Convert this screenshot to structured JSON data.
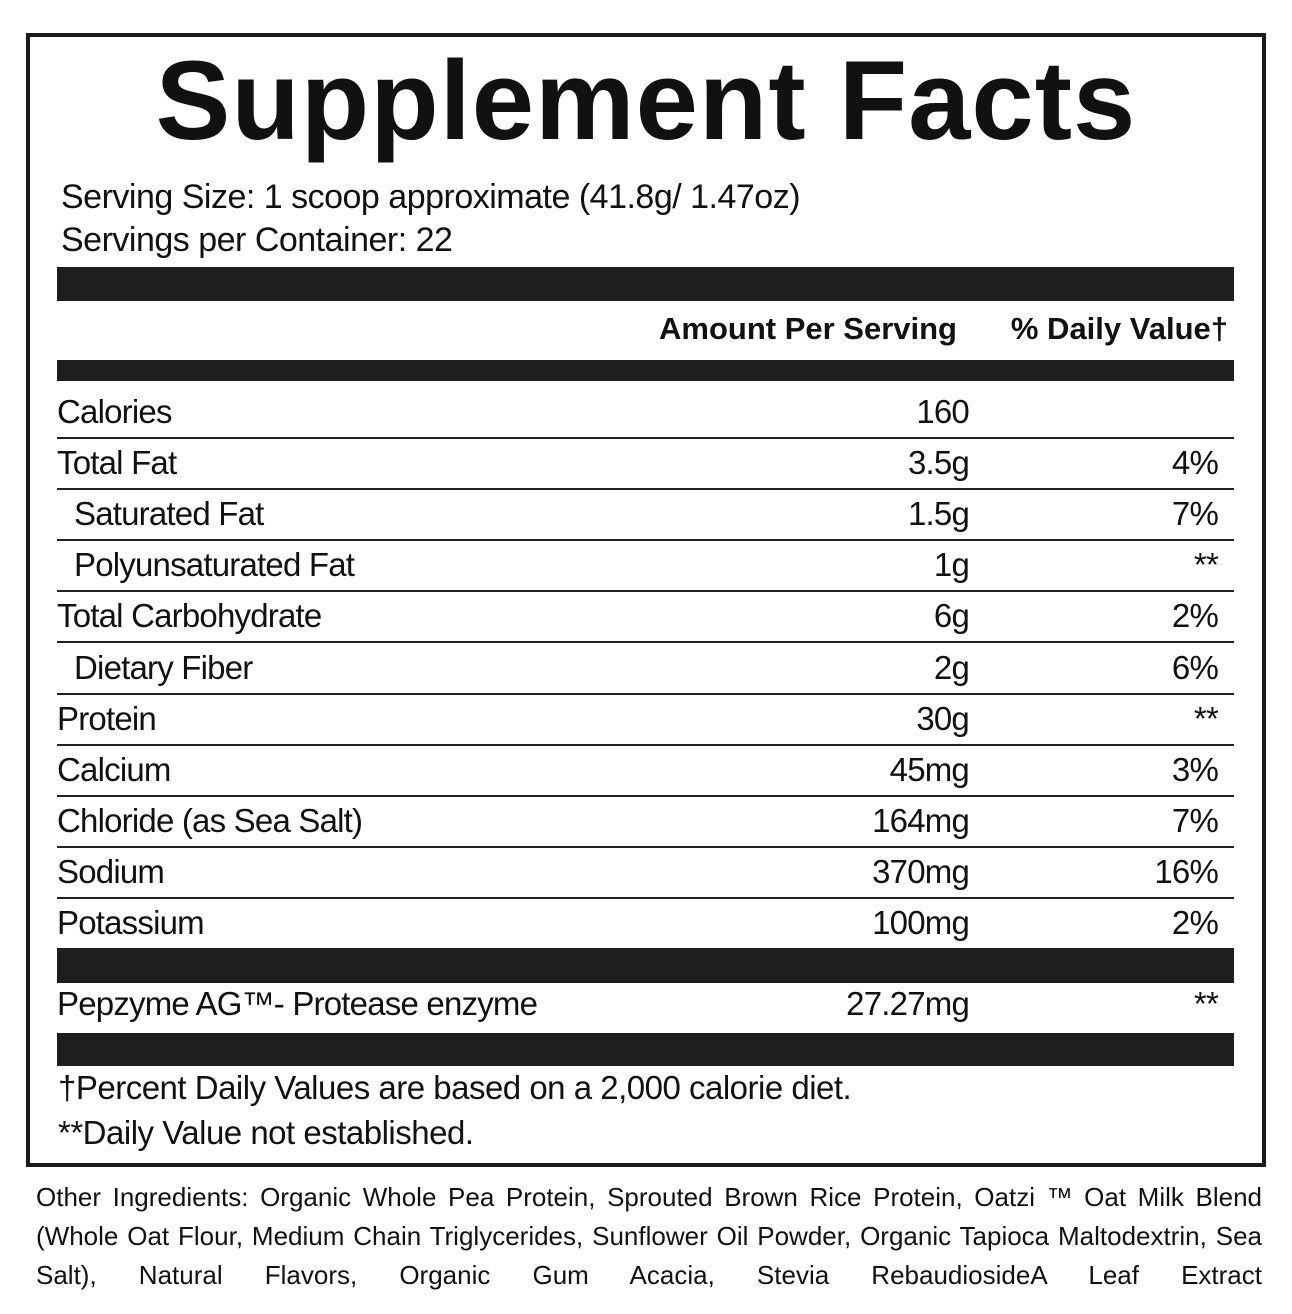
{
  "label": {
    "title": "Supplement Facts",
    "serving_size": "Serving Size: 1 scoop approximate (41.8g/ 1.47oz)",
    "servings_per_container": "Servings per Container: 22",
    "header": {
      "amount": "Amount Per Serving",
      "daily_value": "% Daily Value†"
    },
    "rows": [
      {
        "name": "Calories",
        "amount": "160"
      },
      {
        "name": "Total Fat",
        "amount": "3.5g",
        "dv": "4%",
        "sub": [
          {
            "name": "Saturated Fat",
            "amount": "1.5g",
            "dv": "7%"
          },
          {
            "name": "Polyunsaturated Fat",
            "amount": "1g",
            "dv": "**"
          }
        ]
      },
      {
        "name": "Total Carbohydrate",
        "amount": "6g",
        "dv": "2%",
        "sub": [
          {
            "name": "Dietary Fiber",
            "amount": "2g",
            "dv": "6%"
          }
        ]
      },
      {
        "name": "Protein",
        "amount": "30g",
        "dv": "**"
      },
      {
        "name": "Calcium",
        "amount": "45mg",
        "dv": "3%"
      },
      {
        "name": "Chloride (as Sea Salt)",
        "amount": "164mg",
        "dv": "7%"
      },
      {
        "name": "Sodium",
        "amount": "370mg",
        "dv": "16%"
      },
      {
        "name": "Potassium",
        "amount": "100mg",
        "dv": "2%"
      }
    ],
    "blend": [
      {
        "name": "Pepzyme AG™- Protease enzyme",
        "amount": "27.27mg",
        "dv": "**"
      }
    ],
    "footnotes": [
      "†Percent Daily Values are based on a 2,000 calorie diet.",
      "**Daily Value not established."
    ],
    "other_ingredients": "Other Ingredients: Organic Whole Pea Protein, Sprouted Brown Rice Protein, Oatzi ™ Oat Milk Blend (Whole Oat Flour, Medium Chain Triglycerides, Sunflower Oil Powder, Organic Tapioca Maltodextrin, Sea Salt), Natural Flavors, Organic Gum Acacia, Stevia RebaudiosideA Leaf Extract"
  }
}
